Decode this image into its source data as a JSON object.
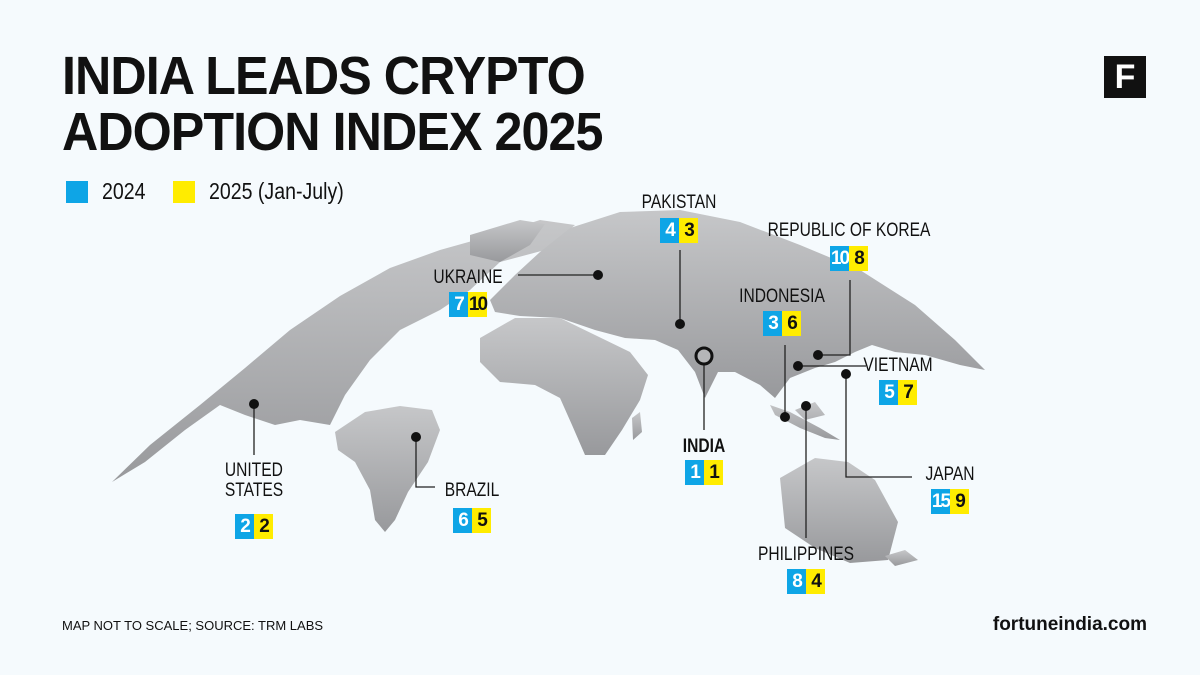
{
  "title": {
    "line1": "INDIA LEADS CRYPTO",
    "line2": "ADOPTION INDEX 2025"
  },
  "logo": "F",
  "legend": {
    "y2024": "2024",
    "y2025": "2025 (Jan-July)"
  },
  "colors": {
    "2024": "#0ea5e6",
    "2025": "#ffec00",
    "land": "#b0b1b4",
    "background": "#f5fafd"
  },
  "countries": [
    {
      "name": "UNITED",
      "name2": "STATES",
      "rank_2024": "2",
      "rank_2025": "2"
    },
    {
      "name": "BRAZIL",
      "rank_2024": "6",
      "rank_2025": "5"
    },
    {
      "name": "UKRAINE",
      "rank_2024": "7",
      "rank_2025": "10"
    },
    {
      "name": "PAKISTAN",
      "rank_2024": "4",
      "rank_2025": "3"
    },
    {
      "name": "INDIA",
      "rank_2024": "1",
      "rank_2025": "1"
    },
    {
      "name": "INDONESIA",
      "rank_2024": "3",
      "rank_2025": "6"
    },
    {
      "name": "REPUBLIC OF KOREA",
      "rank_2024": "10",
      "rank_2025": "8"
    },
    {
      "name": "VIETNAM",
      "rank_2024": "5",
      "rank_2025": "7"
    },
    {
      "name": "JAPAN",
      "rank_2024": "15",
      "rank_2025": "9"
    },
    {
      "name": "PHILIPPINES",
      "rank_2024": "8",
      "rank_2025": "4"
    }
  ],
  "footer": {
    "note": "MAP NOT TO SCALE; SOURCE: TRM LABS",
    "site": "fortuneindia.com"
  }
}
